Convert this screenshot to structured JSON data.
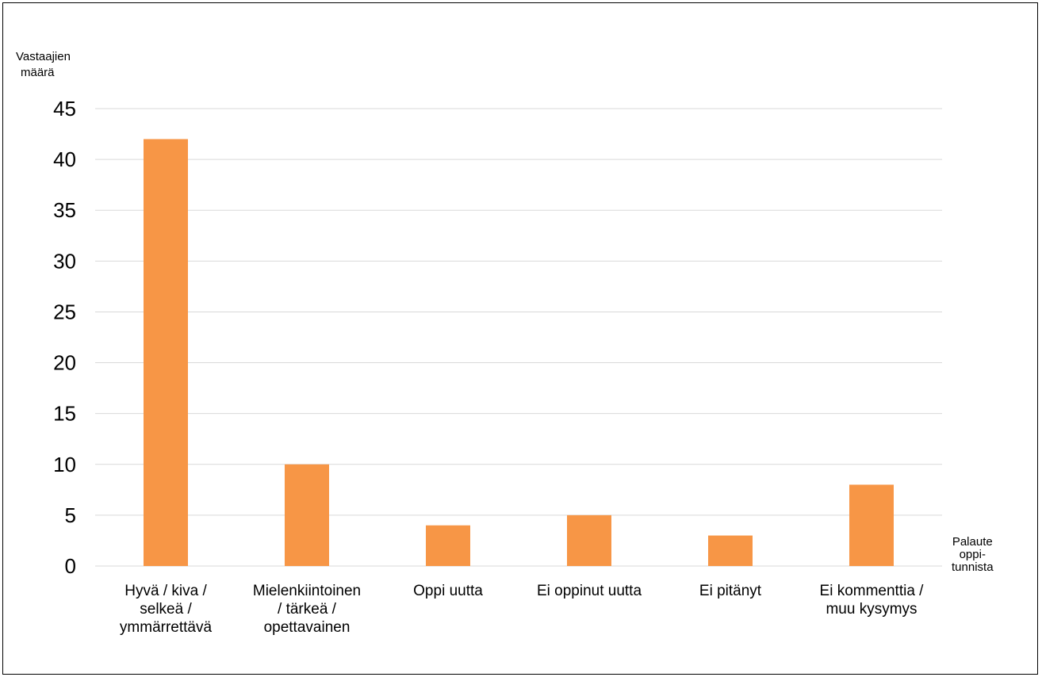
{
  "chart_data": {
    "type": "bar",
    "ylabel_lines": [
      "Vastaajien",
      "määrä"
    ],
    "xlabel_lines": [
      "Palaute",
      "oppi-",
      "tunnista"
    ],
    "ylim": [
      0,
      45
    ],
    "yticks": [
      "0",
      "5",
      "10",
      "15",
      "20",
      "25",
      "30",
      "35",
      "40",
      "45"
    ],
    "grid": true,
    "bar_color": "#F79646",
    "grid_color": "#d9d9d9",
    "categories": [
      [
        "Hyvä / kiva /",
        "selkeä /",
        "ymmärrettävä"
      ],
      [
        "Mielenkiintoinen",
        "/ tärkeä /",
        "opettavainen"
      ],
      [
        "Oppi uutta"
      ],
      [
        "Ei oppinut uutta"
      ],
      [
        "Ei pitänyt"
      ],
      [
        "Ei kommenttia /",
        "muu kysymys"
      ]
    ],
    "values": [
      42,
      10,
      4,
      5,
      3,
      8
    ]
  }
}
